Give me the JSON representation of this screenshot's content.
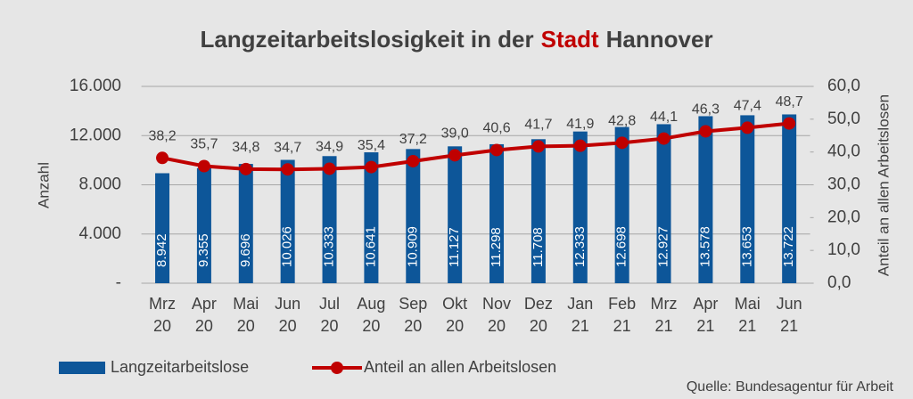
{
  "chart_data": {
    "type": "bar-line",
    "title": [
      {
        "text": "Langzeitarbeitslosigkeit in der",
        "color": "#404040"
      },
      {
        "text": "Stadt",
        "color": "#c00000"
      },
      {
        "text": "Hannover",
        "color": "#404040"
      }
    ],
    "ylabel": "Anzahl",
    "y2label": "Anteil an allen Arbeitslosen",
    "categories": [
      [
        "Mrz",
        "20"
      ],
      [
        "Apr",
        "20"
      ],
      [
        "Mai",
        "20"
      ],
      [
        "Jun",
        "20"
      ],
      [
        "Jul",
        "20"
      ],
      [
        "Aug",
        "20"
      ],
      [
        "Sep",
        "20"
      ],
      [
        "Okt",
        "20"
      ],
      [
        "Nov",
        "20"
      ],
      [
        "Dez",
        "20"
      ],
      [
        "Jan",
        "21"
      ],
      [
        "Feb",
        "21"
      ],
      [
        "Mrz",
        "21"
      ],
      [
        "Apr",
        "21"
      ],
      [
        "Mai",
        "21"
      ],
      [
        "Jun",
        "21"
      ]
    ],
    "series": [
      {
        "name": "Langzeitarbeitslose",
        "color": "#0d5699",
        "values": [
          8942,
          9355,
          9696,
          10026,
          10333,
          10641,
          10909,
          11127,
          11298,
          11708,
          12333,
          12698,
          12927,
          13578,
          13653,
          13722
        ],
        "value_labels": [
          "8.942",
          "9.355",
          "9.696",
          "10.026",
          "10.333",
          "10.641",
          "10.909",
          "11.127",
          "11.298",
          "11.708",
          "12.333",
          "12.698",
          "12.927",
          "13.578",
          "13.653",
          "13.722"
        ]
      },
      {
        "name": "Anteil an allen Arbeitslosen",
        "color": "#c00000",
        "axis": "y2",
        "values": [
          38.2,
          35.7,
          34.8,
          34.7,
          34.9,
          35.4,
          37.2,
          39.0,
          40.6,
          41.7,
          41.9,
          42.8,
          44.1,
          46.3,
          47.4,
          48.7
        ],
        "value_labels": [
          "38,2",
          "35,7",
          "34,8",
          "34,7",
          "34,9",
          "35,4",
          "37,2",
          "39,0",
          "40,6",
          "41,7",
          "41,9",
          "42,8",
          "44,1",
          "46,3",
          "47,4",
          "48,7"
        ]
      }
    ],
    "ylim": [
      0,
      16000
    ],
    "yticks": [
      {
        "value": 0,
        "label": "-"
      },
      {
        "value": 4000,
        "label": "4.000"
      },
      {
        "value": 8000,
        "label": "8.000"
      },
      {
        "value": 12000,
        "label": "12.000"
      },
      {
        "value": 16000,
        "label": "16.000"
      }
    ],
    "y2lim": [
      0,
      60
    ],
    "y2ticks": [
      {
        "value": 0,
        "label": "0,0"
      },
      {
        "value": 10,
        "label": "10,0"
      },
      {
        "value": 20,
        "label": "20,0"
      },
      {
        "value": 30,
        "label": "30,0"
      },
      {
        "value": 40,
        "label": "40,0"
      },
      {
        "value": 50,
        "label": "50,0"
      },
      {
        "value": 60,
        "label": "60,0"
      }
    ],
    "grid": true,
    "source": "Quelle: Bundesagentur für Arbeit"
  }
}
